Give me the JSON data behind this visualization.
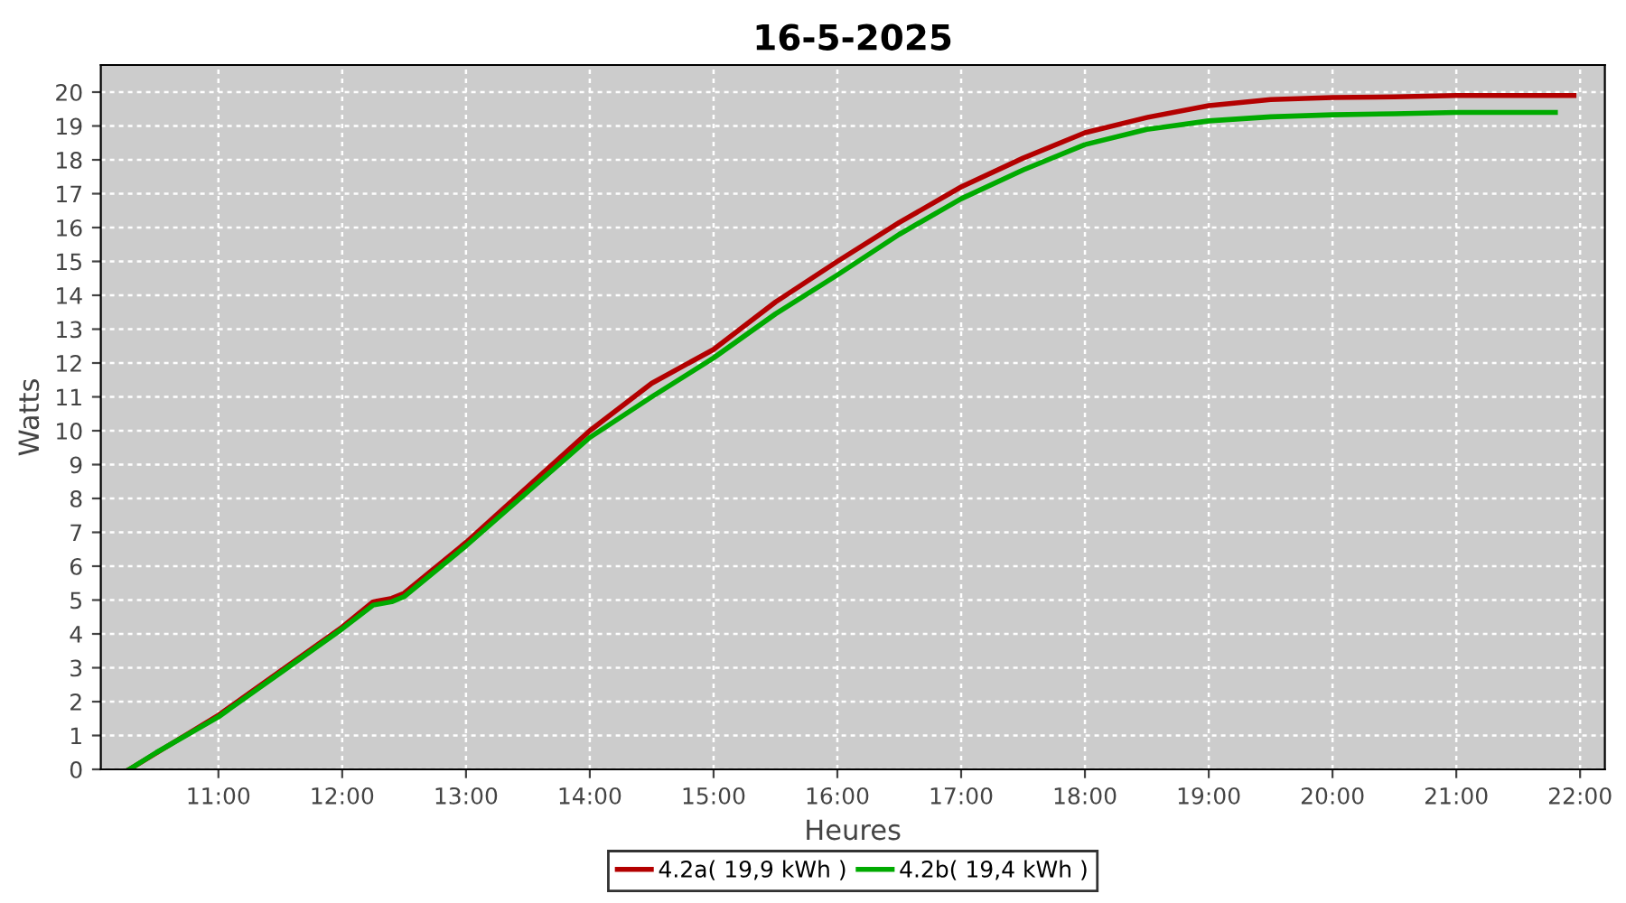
{
  "chart_data": {
    "type": "line",
    "title": "16-5-2025",
    "xlabel": "Heures",
    "ylabel": "Watts",
    "xlim": [
      10.05,
      22.2
    ],
    "ylim": [
      0,
      20.8
    ],
    "xticks": [
      {
        "value": 11,
        "label": "11:00"
      },
      {
        "value": 12,
        "label": "12:00"
      },
      {
        "value": 13,
        "label": "13:00"
      },
      {
        "value": 14,
        "label": "14:00"
      },
      {
        "value": 15,
        "label": "15:00"
      },
      {
        "value": 16,
        "label": "16:00"
      },
      {
        "value": 17,
        "label": "17:00"
      },
      {
        "value": 18,
        "label": "18:00"
      },
      {
        "value": 19,
        "label": "19:00"
      },
      {
        "value": 20,
        "label": "20:00"
      },
      {
        "value": 21,
        "label": "21:00"
      },
      {
        "value": 22,
        "label": "22:00"
      }
    ],
    "yticks": [
      0,
      1,
      2,
      3,
      4,
      5,
      6,
      7,
      8,
      9,
      10,
      11,
      12,
      13,
      14,
      15,
      16,
      17,
      18,
      19,
      20
    ],
    "grid": true,
    "legend": "bottom",
    "marker": "none",
    "line_style": "solid",
    "series": [
      {
        "name": "4.2a( 19,9 kWh )",
        "color": "#b30000",
        "x": [
          10.28,
          11,
          11.5,
          12,
          12.25,
          12.4,
          12.5,
          13,
          13.5,
          14,
          14.5,
          15,
          15.5,
          16,
          16.5,
          17,
          17.5,
          18,
          18.5,
          19,
          19.5,
          20,
          20.5,
          21,
          21.5,
          21.95
        ],
        "values": [
          0,
          1.6,
          2.9,
          4.2,
          4.95,
          5.05,
          5.2,
          6.7,
          8.35,
          10.0,
          11.4,
          12.4,
          13.8,
          15.0,
          16.15,
          17.2,
          18.05,
          18.8,
          19.25,
          19.6,
          19.78,
          19.84,
          19.86,
          19.9,
          19.9,
          19.9
        ]
      },
      {
        "name": "4.2b( 19,4 kWh )",
        "color": "#00aa00",
        "x": [
          10.28,
          10.5,
          11,
          11.5,
          12,
          12.25,
          12.4,
          12.5,
          13,
          13.5,
          14,
          14.5,
          15,
          15.5,
          16,
          16.5,
          17,
          17.5,
          18,
          18.5,
          19,
          19.5,
          20,
          20.5,
          21,
          21.5,
          21.8
        ],
        "values": [
          0,
          0.5,
          1.55,
          2.85,
          4.15,
          4.85,
          4.95,
          5.1,
          6.6,
          8.2,
          9.8,
          11.0,
          12.15,
          13.45,
          14.6,
          15.8,
          16.85,
          17.7,
          18.45,
          18.9,
          19.15,
          19.27,
          19.33,
          19.36,
          19.4,
          19.4,
          19.4
        ]
      }
    ]
  }
}
